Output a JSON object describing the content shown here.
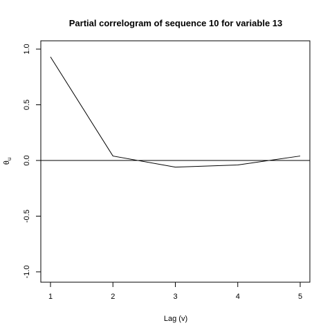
{
  "chart_data": {
    "type": "line",
    "title": "Partial correlogram of sequence  10  for variable  13",
    "xlabel": "Lag (v)",
    "ylabel": "θ",
    "ylabel_sub": "u",
    "x": [
      1,
      2,
      3,
      4,
      5
    ],
    "series": [
      {
        "values": [
          0.93,
          0.04,
          -0.06,
          -0.04,
          0.04
        ]
      }
    ],
    "xlim": [
      1,
      5
    ],
    "ylim": [
      -1,
      1
    ],
    "xticks": [
      "1",
      "2",
      "3",
      "4",
      "5"
    ],
    "yticks": [
      "-1.0",
      "-0.5",
      "0.0",
      "0.5",
      "1.0"
    ],
    "reference_line_y": 0,
    "grid": false,
    "legend": "none",
    "line_color": "#000000"
  }
}
